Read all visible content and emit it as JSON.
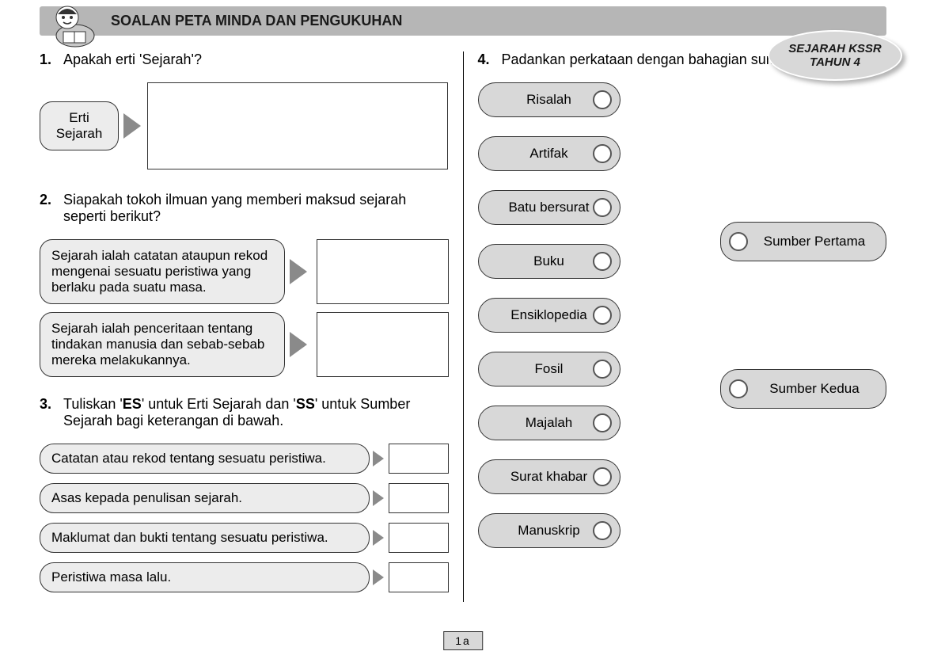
{
  "header": {
    "title": "SOALAN PETA MINDA DAN PENGUKUHAN",
    "badge_line1": "SEJARAH KSSR",
    "badge_line2": "TAHUN 4"
  },
  "page_number": "1a",
  "colors": {
    "header_bg": "#b6b6b6",
    "box_bg": "#ececec",
    "pill_bg": "#d8d8d8",
    "arrow": "#8a8a8a",
    "border": "#333333"
  },
  "q1": {
    "num": "1.",
    "text": "Apakah erti 'Sejarah'?",
    "label": "Erti Sejarah"
  },
  "q2": {
    "num": "2.",
    "text": "Siapakah tokoh ilmuan yang memberi maksud sejarah seperti berikut?",
    "quotes": [
      "Sejarah ialah catatan ataupun rekod mengenai sesuatu peristiwa yang berlaku pada suatu masa.",
      "Sejarah ialah penceritaan tentang tindakan manusia dan sebab-sebab mereka melakukannya."
    ]
  },
  "q3": {
    "num": "3.",
    "prefix": "Tuliskan '",
    "es": "ES",
    "mid1": "' untuk Erti Sejarah dan '",
    "ss": "SS",
    "suffix": "' untuk Sumber Sejarah bagi keterangan di bawah.",
    "items": [
      "Catatan atau rekod tentang sesuatu peristiwa.",
      "Asas kepada penulisan sejarah.",
      "Maklumat dan bukti tentang sesuatu peristiwa.",
      "Peristiwa masa lalu."
    ]
  },
  "q4": {
    "num": "4.",
    "text": "Padankan perkataan dengan bahagian sumber yang betul.",
    "left_items": [
      "Risalah",
      "Artifak",
      "Batu bersurat",
      "Buku",
      "Ensiklopedia",
      "Fosil",
      "Majalah",
      "Surat khabar",
      "Manuskrip"
    ],
    "right_items": [
      "Sumber Pertama",
      "Sumber Kedua"
    ]
  }
}
